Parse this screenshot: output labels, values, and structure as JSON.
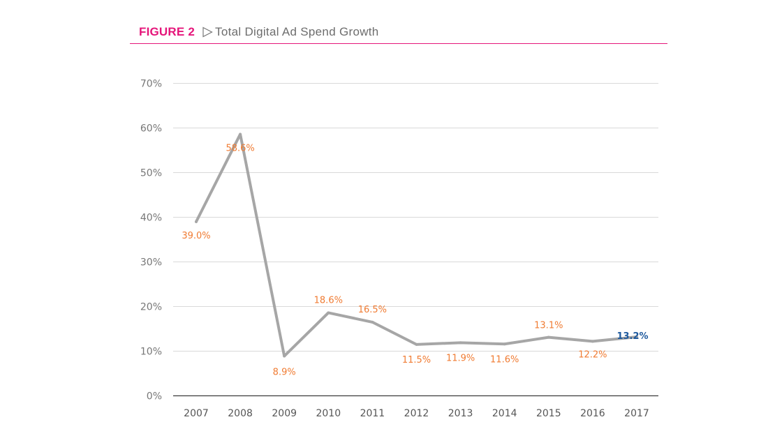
{
  "figure": {
    "label": "FIGURE 2",
    "title": "Total Digital Ad Spend Growth",
    "arrow_icon": "outline-right-triangle",
    "accent_color": "#e5157a"
  },
  "chart_data": {
    "type": "line",
    "title": "Total Digital Ad Spend Growth",
    "xlabel": "",
    "ylabel": "",
    "categories": [
      "2007",
      "2008",
      "2009",
      "2010",
      "2011",
      "2012",
      "2013",
      "2014",
      "2015",
      "2016",
      "2017"
    ],
    "series": [
      {
        "values": [
          39.0,
          58.6,
          8.9,
          18.6,
          16.5,
          11.5,
          11.9,
          11.6,
          13.1,
          12.2,
          13.2
        ],
        "color": "#a6a6a6"
      }
    ],
    "data_labels": [
      "39.0%",
      "58.6%",
      "8.9%",
      "18.6%",
      "16.5%",
      "11.5%",
      "11.9%",
      "11.6%",
      "13.1%",
      "12.2%",
      "13.2%"
    ],
    "label_color": "#f07b32",
    "highlight_label_color": "#1f5a9e",
    "highlight_index": 10,
    "ylim": [
      0,
      70
    ],
    "y_ticks": [
      0,
      10,
      20,
      30,
      40,
      50,
      60,
      70
    ],
    "y_tick_labels": [
      "0%",
      "10%",
      "20%",
      "30%",
      "40%",
      "50%",
      "60%",
      "70%"
    ],
    "grid": true,
    "legend": "none"
  }
}
